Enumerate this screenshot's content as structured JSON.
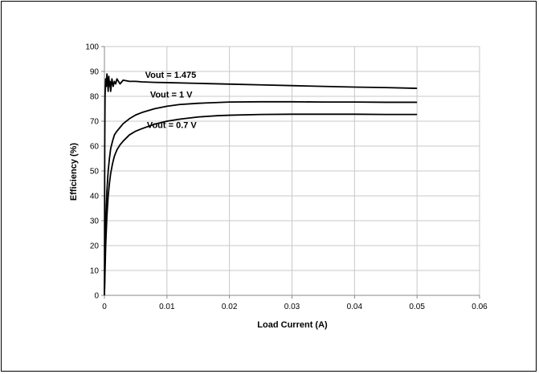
{
  "chart_data": {
    "type": "line",
    "title": "",
    "xlabel": "Load Current (A)",
    "ylabel": "Efficiency (%)",
    "xlim": [
      0,
      0.06
    ],
    "ylim": [
      0,
      100
    ],
    "x_ticks": [
      "0",
      "0.01",
      "0.02",
      "0.03",
      "0.04",
      "0.05",
      "0.06"
    ],
    "y_ticks": [
      "0",
      "10",
      "20",
      "30",
      "40",
      "50",
      "60",
      "70",
      "80",
      "90",
      "100"
    ],
    "grid": true,
    "legend": "none",
    "line_color": "#000000",
    "series": [
      {
        "name": "Vout = 1.475",
        "x": [
          0,
          5e-05,
          0.0001,
          0.0002,
          0.0003,
          0.0004,
          0.0005,
          0.0006,
          0.0007,
          0.0008,
          0.0009,
          0.001,
          0.0012,
          0.0014,
          0.0016,
          0.0018,
          0.002,
          0.0025,
          0.003,
          0.004,
          0.005,
          0.006,
          0.008,
          0.01,
          0.015,
          0.02,
          0.025,
          0.03,
          0.035,
          0.04,
          0.045,
          0.05
        ],
        "y": [
          0,
          60,
          80,
          87,
          84,
          89,
          86,
          82,
          88,
          84,
          86,
          82,
          87,
          84,
          86,
          85,
          87,
          85,
          86.5,
          86,
          86,
          85.8,
          85.6,
          85.5,
          85.2,
          84.9,
          84.6,
          84.3,
          84.0,
          83.7,
          83.5,
          83.2
        ]
      },
      {
        "name": "Vout = 1 V",
        "x": [
          0,
          0.0002,
          0.0004,
          0.0006,
          0.0008,
          0.001,
          0.0013,
          0.0016,
          0.002,
          0.0025,
          0.003,
          0.004,
          0.005,
          0.006,
          0.008,
          0.01,
          0.012,
          0.015,
          0.018,
          0.02,
          0.025,
          0.03,
          0.035,
          0.04,
          0.045,
          0.05
        ],
        "y": [
          0,
          30,
          42,
          50,
          55,
          59,
          62,
          64.5,
          66,
          67.5,
          69,
          71,
          72.5,
          73.5,
          75,
          76,
          76.7,
          77.2,
          77.5,
          77.7,
          77.8,
          77.8,
          77.7,
          77.7,
          77.6,
          77.6
        ]
      },
      {
        "name": "Vout = 0.7 V",
        "x": [
          0,
          0.0002,
          0.0004,
          0.0006,
          0.0008,
          0.001,
          0.0013,
          0.0016,
          0.002,
          0.0025,
          0.003,
          0.004,
          0.005,
          0.006,
          0.008,
          0.01,
          0.012,
          0.015,
          0.018,
          0.02,
          0.025,
          0.03,
          0.035,
          0.04,
          0.045,
          0.05
        ],
        "y": [
          0,
          20,
          32,
          40,
          45,
          49,
          53,
          56,
          58.5,
          60.5,
          62,
          64.5,
          66,
          67,
          68.8,
          70,
          70.8,
          71.7,
          72.2,
          72.4,
          72.7,
          72.8,
          72.8,
          72.8,
          72.7,
          72.7
        ]
      }
    ],
    "annotations": [
      {
        "text": "Vout = 1.475",
        "series": 0,
        "x": 0.0065,
        "y": 87.5
      },
      {
        "text": "Vout = 1 V",
        "series": 1,
        "x": 0.0073,
        "y": 79.5
      },
      {
        "text": "Vout = 0.7 V",
        "series": 2,
        "x": 0.0068,
        "y": 67.2
      }
    ]
  }
}
